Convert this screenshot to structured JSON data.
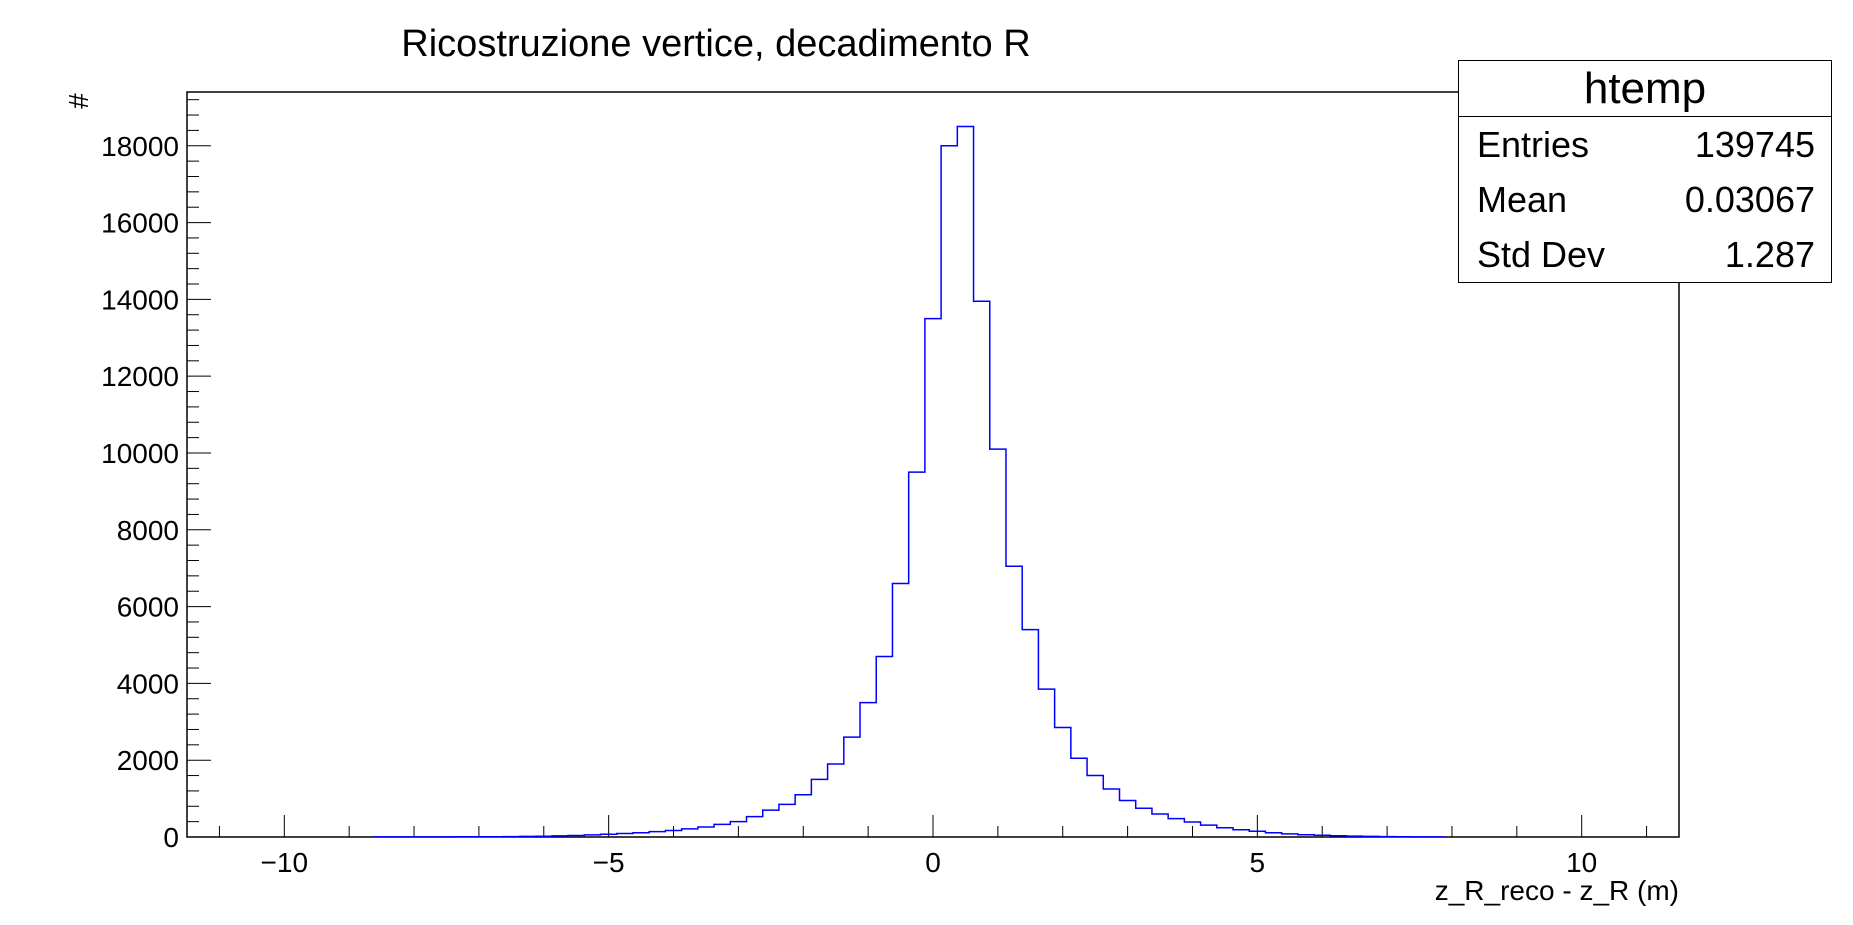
{
  "chart_data": {
    "type": "bar",
    "histogram": true,
    "title": "Ricostruzione vertice, decadimento R",
    "xlabel": "z_R_reco - z_R (m)",
    "ylabel": "#",
    "xlim": [
      -11.5,
      11.5
    ],
    "ylim": [
      0,
      19400
    ],
    "bin_width": 0.25,
    "x_ticks": [
      -10,
      -5,
      0,
      5,
      10
    ],
    "x_tick_labels": [
      "−10",
      "−5",
      "0",
      "5",
      "10"
    ],
    "y_ticks": [
      0,
      2000,
      4000,
      6000,
      8000,
      10000,
      12000,
      14000,
      16000,
      18000
    ],
    "y_tick_labels": [
      "0",
      "2000",
      "4000",
      "6000",
      "8000",
      "10000",
      "12000",
      "14000",
      "16000",
      "18000"
    ],
    "line_color": "#0000ff",
    "bins": [
      {
        "x": -8.5,
        "y": 2
      },
      {
        "x": -8.25,
        "y": 2
      },
      {
        "x": -8.0,
        "y": 3
      },
      {
        "x": -7.75,
        "y": 3
      },
      {
        "x": -7.5,
        "y": 4
      },
      {
        "x": -7.25,
        "y": 5
      },
      {
        "x": -7.0,
        "y": 6
      },
      {
        "x": -6.75,
        "y": 8
      },
      {
        "x": -6.5,
        "y": 10
      },
      {
        "x": -6.25,
        "y": 15
      },
      {
        "x": -6.0,
        "y": 20
      },
      {
        "x": -5.75,
        "y": 30
      },
      {
        "x": -5.5,
        "y": 40
      },
      {
        "x": -5.25,
        "y": 55
      },
      {
        "x": -5.0,
        "y": 70
      },
      {
        "x": -4.75,
        "y": 90
      },
      {
        "x": -4.5,
        "y": 110
      },
      {
        "x": -4.25,
        "y": 140
      },
      {
        "x": -4.0,
        "y": 170
      },
      {
        "x": -3.75,
        "y": 210
      },
      {
        "x": -3.5,
        "y": 260
      },
      {
        "x": -3.25,
        "y": 330
      },
      {
        "x": -3.0,
        "y": 400
      },
      {
        "x": -2.75,
        "y": 530
      },
      {
        "x": -2.5,
        "y": 700
      },
      {
        "x": -2.25,
        "y": 850
      },
      {
        "x": -2.0,
        "y": 1100
      },
      {
        "x": -1.75,
        "y": 1500
      },
      {
        "x": -1.5,
        "y": 1900
      },
      {
        "x": -1.25,
        "y": 2600
      },
      {
        "x": -1.0,
        "y": 3500
      },
      {
        "x": -0.75,
        "y": 4700
      },
      {
        "x": -0.5,
        "y": 6600
      },
      {
        "x": -0.25,
        "y": 9500
      },
      {
        "x": 0.0,
        "y": 13500
      },
      {
        "x": 0.25,
        "y": 18000
      },
      {
        "x": 0.5,
        "y": 18500
      },
      {
        "x": 0.75,
        "y": 13950
      },
      {
        "x": 1.0,
        "y": 10100
      },
      {
        "x": 1.25,
        "y": 7050
      },
      {
        "x": 1.5,
        "y": 5400
      },
      {
        "x": 1.75,
        "y": 3850
      },
      {
        "x": 2.0,
        "y": 2850
      },
      {
        "x": 2.25,
        "y": 2050
      },
      {
        "x": 2.5,
        "y": 1600
      },
      {
        "x": 2.75,
        "y": 1250
      },
      {
        "x": 3.0,
        "y": 950
      },
      {
        "x": 3.25,
        "y": 750
      },
      {
        "x": 3.5,
        "y": 600
      },
      {
        "x": 3.75,
        "y": 480
      },
      {
        "x": 4.0,
        "y": 390
      },
      {
        "x": 4.25,
        "y": 310
      },
      {
        "x": 4.5,
        "y": 240
      },
      {
        "x": 4.75,
        "y": 190
      },
      {
        "x": 5.0,
        "y": 150
      },
      {
        "x": 5.25,
        "y": 110
      },
      {
        "x": 5.5,
        "y": 80
      },
      {
        "x": 5.75,
        "y": 60
      },
      {
        "x": 6.0,
        "y": 45
      },
      {
        "x": 6.25,
        "y": 32
      },
      {
        "x": 6.5,
        "y": 22
      },
      {
        "x": 6.75,
        "y": 15
      },
      {
        "x": 7.0,
        "y": 10
      },
      {
        "x": 7.25,
        "y": 7
      },
      {
        "x": 7.5,
        "y": 4
      },
      {
        "x": 7.75,
        "y": 2
      }
    ]
  },
  "stats": {
    "title": "htemp",
    "rows": [
      {
        "label": "Entries",
        "value": "139745"
      },
      {
        "label": "Mean",
        "value": "0.03067"
      },
      {
        "label": "Std Dev",
        "value": "1.287"
      }
    ]
  }
}
